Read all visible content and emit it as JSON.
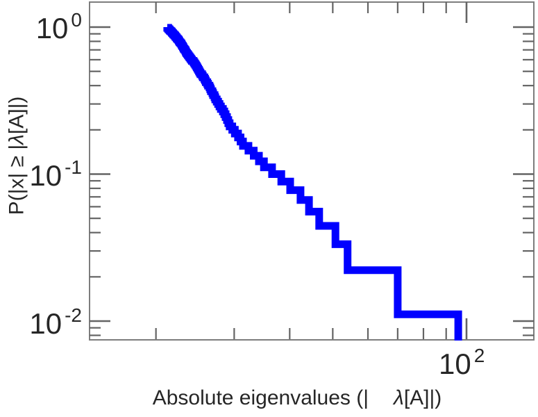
{
  "figure": {
    "background": "#ffffff",
    "frame_color": "#7d7d7d",
    "tick_color": "#646464",
    "text_color": "#262626"
  },
  "chart_data": {
    "type": "line",
    "subtype": "empirical-ccdf-step-loglog",
    "title": "",
    "xlabel": "Absolute eigenvalues (|λ[A]|)",
    "ylabel": "P(|x| ≥ |λ[A]|)",
    "x_scale": "log",
    "y_scale": "log",
    "xlim": [
      14.1,
      142.2
    ],
    "ylim": [
      0.00745,
      1.496
    ],
    "x_major_ticks": [
      100
    ],
    "y_major_ticks": [
      1,
      0.1,
      0.01
    ],
    "x_minor_ticks": [
      20,
      30,
      40,
      50,
      60,
      70,
      80,
      90
    ],
    "y_minor_ticks": [
      0.9,
      0.8,
      0.7,
      0.6,
      0.5,
      0.4,
      0.3,
      0.2,
      0.09,
      0.08,
      0.07,
      0.06,
      0.05,
      0.04,
      0.03,
      0.02,
      0.009,
      0.008
    ],
    "grid": false,
    "legend": null,
    "line_color": "#0000ff",
    "line_width": 11,
    "n_samples": 90,
    "ccdf_rule": "P(k) = k/90 for the k-th largest eigenvalue",
    "eigenvalues_desc": [
      95.8,
      70.0,
      54.0,
      50.7,
      46.6,
      44.2,
      42.3,
      40.1,
      38.3,
      36.5,
      35.0,
      34.1,
      33.2,
      32.3,
      31.4,
      31.0,
      30.6,
      30.1,
      29.7,
      29.3,
      29.1,
      28.9,
      28.7,
      28.5,
      28.3,
      28.0,
      27.8,
      27.6,
      27.4,
      27.2,
      27.1,
      26.9,
      26.8,
      26.6,
      26.5,
      26.4,
      26.2,
      26.1,
      25.9,
      25.8,
      25.7,
      25.5,
      25.4,
      25.2,
      25.1,
      25.0,
      24.9,
      24.8,
      24.7,
      24.6,
      24.5,
      24.4,
      24.3,
      24.1,
      24.0,
      23.9,
      23.8,
      23.7,
      23.6,
      23.5,
      23.4,
      23.35,
      23.3,
      23.2,
      23.1,
      23.05,
      23.0,
      22.9,
      22.85,
      22.8,
      22.7,
      22.6,
      22.55,
      22.5,
      22.4,
      22.3,
      22.25,
      22.15,
      22.1,
      22.0,
      21.9,
      21.85,
      21.75,
      21.7,
      21.6,
      21.5,
      21.45,
      21.35,
      21.3,
      21.2
    ],
    "y_tick_labels": [
      {
        "base": "10",
        "exp": "0",
        "value": 1
      },
      {
        "base": "10",
        "exp": "-1",
        "value": 0.1
      },
      {
        "base": "10",
        "exp": "-2",
        "value": 0.01
      }
    ],
    "x_tick_labels": [
      {
        "base": "10",
        "exp": "2",
        "value": 100
      }
    ],
    "xlabel_parts": {
      "before": "Absolute eigenvalues (|",
      "lambda": "λ",
      "after": "[A]|)"
    },
    "ylabel_parts": {
      "before": "P(|x| ≥ |",
      "lambda": "λ",
      "after": "[A]|)"
    }
  }
}
